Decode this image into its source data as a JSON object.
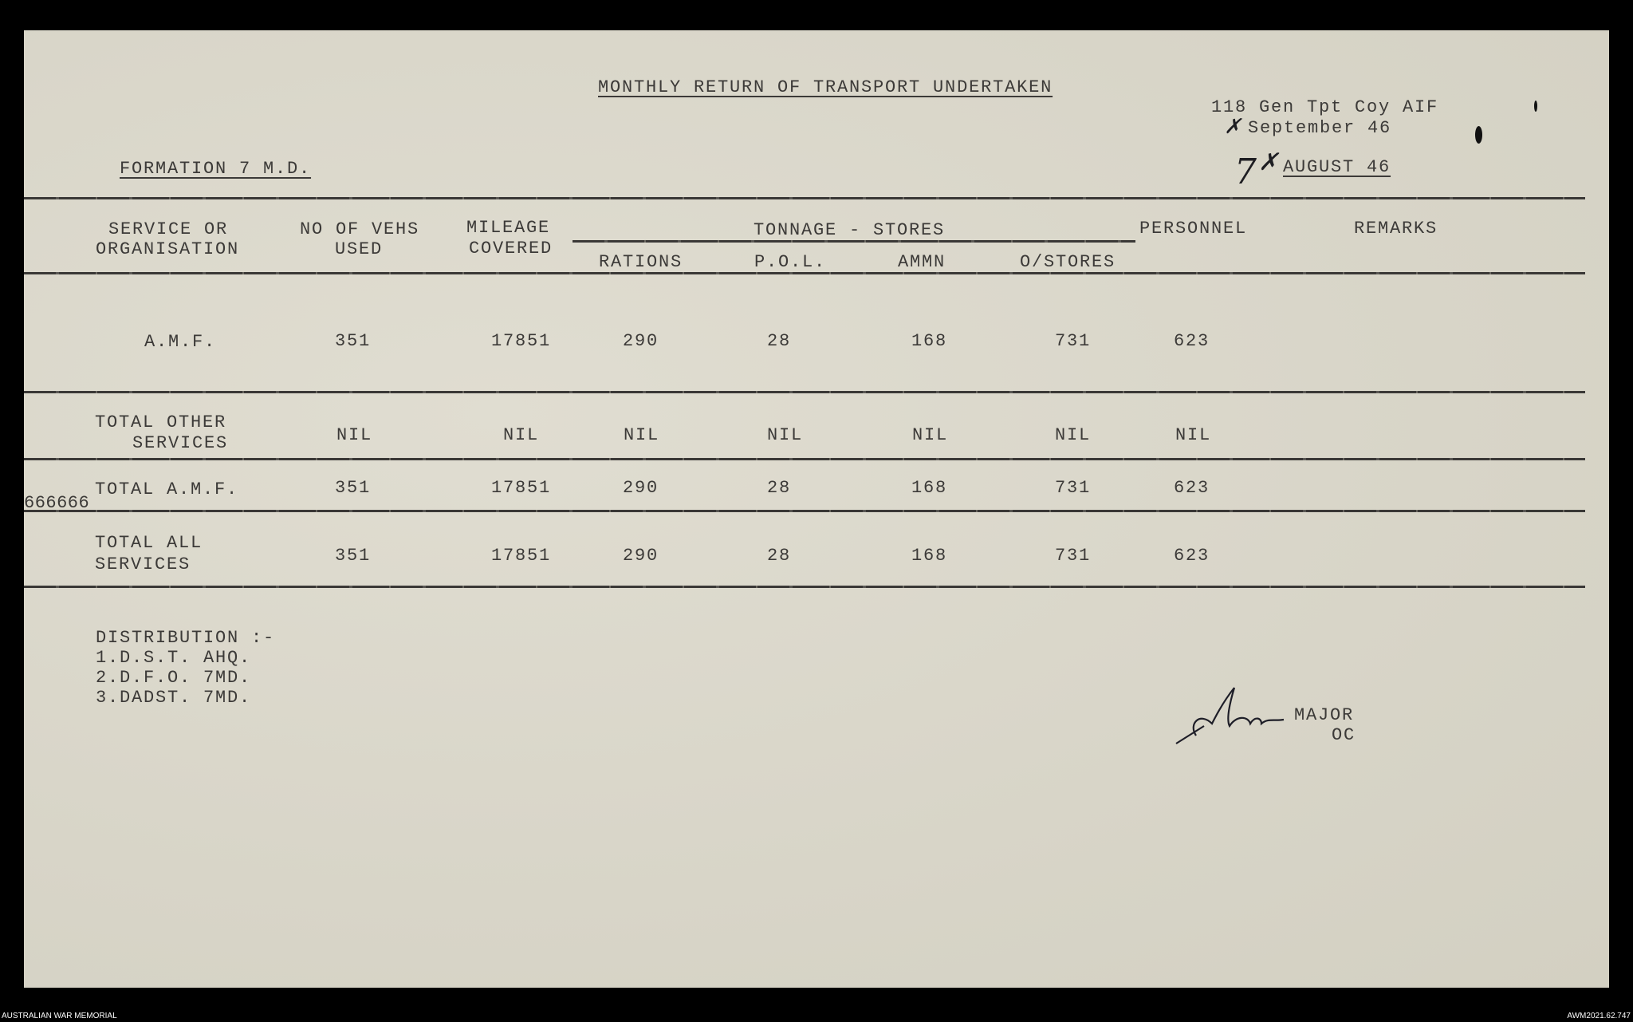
{
  "document": {
    "title": "MONTHLY RETURN OF TRANSPORT UNDERTAKEN",
    "unit": "118 Gen Tpt Coy AIF",
    "date": "September 46",
    "formation": "FORMATION 7 M.D.",
    "period_handwritten": "7",
    "period": "AUGUST 46"
  },
  "table": {
    "headers": {
      "service_1": "SERVICE OR",
      "service_2": "ORGANISATION",
      "vehs_1": "NO OF VEHS",
      "vehs_2": "USED",
      "mileage_1": "MILEAGE",
      "mileage_2": "COVERED",
      "tonnage": "TONNAGE  - STORES",
      "rations": "RATIONS",
      "pol": "P.O.L.",
      "ammn": "AMMN",
      "ostores": "O/STORES",
      "personnel": "PERSONNEL",
      "remarks": "REMARKS"
    },
    "rows": [
      {
        "label": [
          "A.M.F."
        ],
        "vehs": "351",
        "mileage": "17851",
        "rations": "290",
        "pol": "28",
        "ammn": "168",
        "ostores": "731",
        "personnel": "623"
      },
      {
        "label": [
          "TOTAL OTHER",
          "SERVICES"
        ],
        "vehs": "NIL",
        "mileage": "NIL",
        "rations": "NIL",
        "pol": "NIL",
        "ammn": "NIL",
        "ostores": "NIL",
        "personnel": "NIL"
      },
      {
        "label": [
          "TOTAL A.M.F."
        ],
        "margin_note": "666666",
        "vehs": "351",
        "mileage": "17851",
        "rations": "290",
        "pol": "28",
        "ammn": "168",
        "ostores": "731",
        "personnel": "623"
      },
      {
        "label": [
          "TOTAL ALL",
          "SERVICES"
        ],
        "vehs": "351",
        "mileage": "17851",
        "rations": "290",
        "pol": "28",
        "ammn": "168",
        "ostores": "731",
        "personnel": "623"
      }
    ]
  },
  "distribution": {
    "heading": "DISTRIBUTION :-",
    "items": [
      "1.D.S.T. AHQ.",
      "2.D.F.O. 7MD.",
      "3.DADST. 7MD."
    ]
  },
  "signature": {
    "rank": "MAJOR",
    "role": "OC"
  },
  "footer": {
    "left": "AUSTRALIAN WAR MEMORIAL",
    "right": "AWM2021.62.747"
  }
}
